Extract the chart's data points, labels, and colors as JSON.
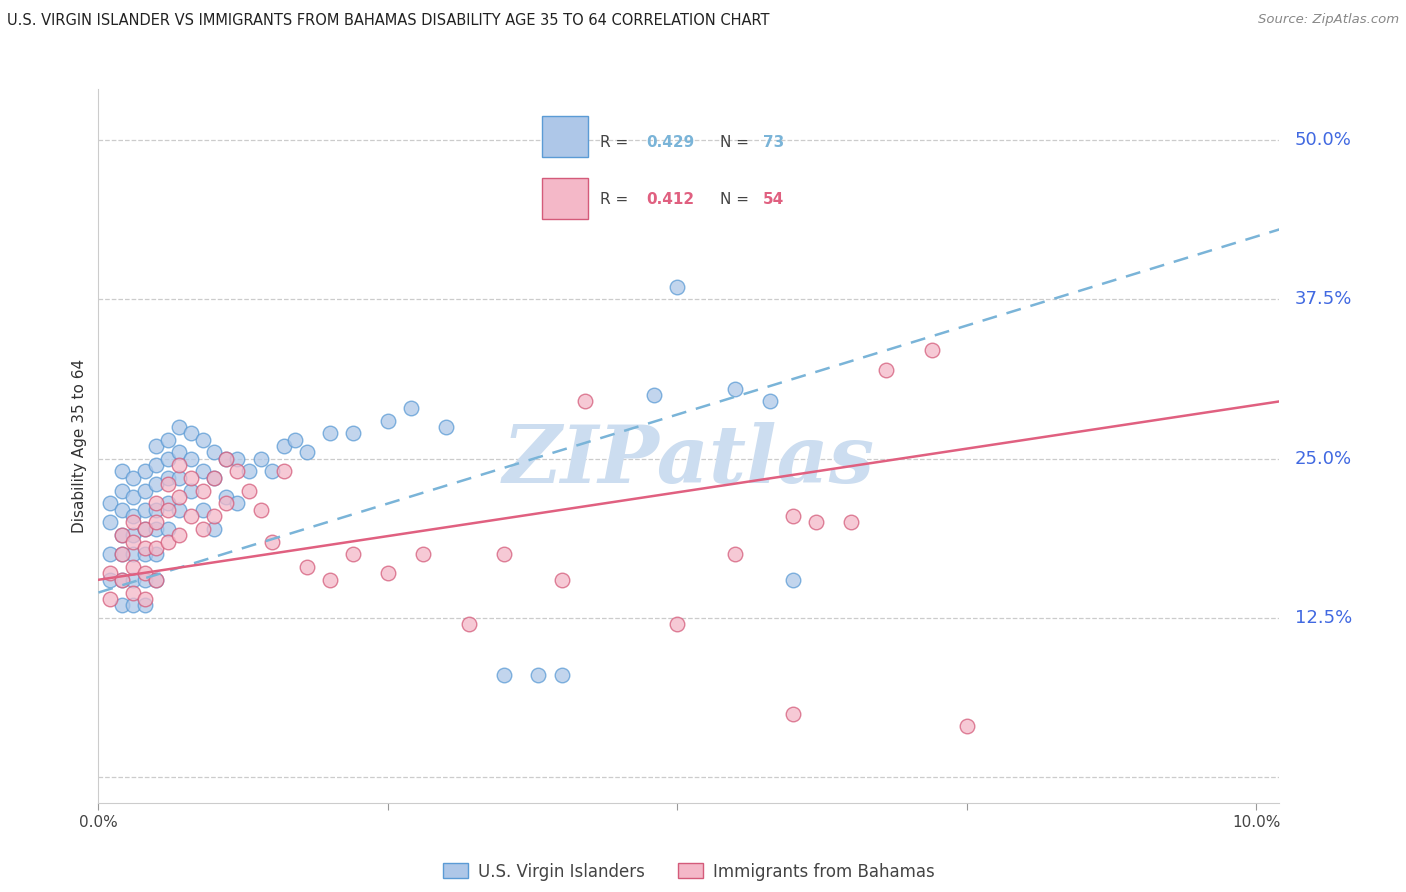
{
  "title": "U.S. VIRGIN ISLANDER VS IMMIGRANTS FROM BAHAMAS DISABILITY AGE 35 TO 64 CORRELATION CHART",
  "source": "Source: ZipAtlas.com",
  "ylabel": "Disability Age 35 to 64",
  "xlim": [
    0.0,
    0.102
  ],
  "ylim": [
    -0.02,
    0.54
  ],
  "xtick_positions": [
    0.0,
    0.025,
    0.05,
    0.075,
    0.1
  ],
  "xtick_labels": [
    "0.0%",
    "",
    "",
    "",
    "10.0%"
  ],
  "ytick_positions": [
    0.0,
    0.125,
    0.25,
    0.375,
    0.5
  ],
  "ytick_labels": [
    "",
    "12.5%",
    "25.0%",
    "37.5%",
    "50.0%"
  ],
  "r_blue": "0.429",
  "n_blue": "73",
  "r_pink": "0.412",
  "n_pink": "54",
  "blue_fill": "#aec7e8",
  "blue_edge": "#5b9bd5",
  "pink_fill": "#f4b8c8",
  "pink_edge": "#d45b7a",
  "trend_blue_color": "#7ab4d8",
  "trend_pink_color": "#e06080",
  "grid_color": "#cccccc",
  "watermark": "ZIPatlas",
  "watermark_color": "#ccddf0",
  "title_color": "#222222",
  "right_label_color": "#4169e1",
  "legend_label_blue": "U.S. Virgin Islanders",
  "legend_label_pink": "Immigrants from Bahamas",
  "blue_x": [
    0.001,
    0.001,
    0.001,
    0.001,
    0.002,
    0.002,
    0.002,
    0.002,
    0.002,
    0.002,
    0.002,
    0.003,
    0.003,
    0.003,
    0.003,
    0.003,
    0.003,
    0.003,
    0.004,
    0.004,
    0.004,
    0.004,
    0.004,
    0.004,
    0.004,
    0.005,
    0.005,
    0.005,
    0.005,
    0.005,
    0.005,
    0.005,
    0.006,
    0.006,
    0.006,
    0.006,
    0.006,
    0.007,
    0.007,
    0.007,
    0.007,
    0.008,
    0.008,
    0.008,
    0.009,
    0.009,
    0.009,
    0.01,
    0.01,
    0.01,
    0.011,
    0.011,
    0.012,
    0.012,
    0.013,
    0.014,
    0.015,
    0.016,
    0.017,
    0.018,
    0.02,
    0.022,
    0.025,
    0.027,
    0.03,
    0.035,
    0.038,
    0.04,
    0.048,
    0.05,
    0.055,
    0.058,
    0.06
  ],
  "blue_y": [
    0.215,
    0.2,
    0.175,
    0.155,
    0.24,
    0.225,
    0.21,
    0.19,
    0.175,
    0.155,
    0.135,
    0.235,
    0.22,
    0.205,
    0.19,
    0.175,
    0.155,
    0.135,
    0.24,
    0.225,
    0.21,
    0.195,
    0.175,
    0.155,
    0.135,
    0.26,
    0.245,
    0.23,
    0.21,
    0.195,
    0.175,
    0.155,
    0.265,
    0.25,
    0.235,
    0.215,
    0.195,
    0.275,
    0.255,
    0.235,
    0.21,
    0.27,
    0.25,
    0.225,
    0.265,
    0.24,
    0.21,
    0.255,
    0.235,
    0.195,
    0.25,
    0.22,
    0.25,
    0.215,
    0.24,
    0.25,
    0.24,
    0.26,
    0.265,
    0.255,
    0.27,
    0.27,
    0.28,
    0.29,
    0.275,
    0.08,
    0.08,
    0.08,
    0.3,
    0.385,
    0.305,
    0.295,
    0.155
  ],
  "pink_x": [
    0.001,
    0.001,
    0.002,
    0.002,
    0.002,
    0.003,
    0.003,
    0.003,
    0.003,
    0.004,
    0.004,
    0.004,
    0.004,
    0.005,
    0.005,
    0.005,
    0.005,
    0.006,
    0.006,
    0.006,
    0.007,
    0.007,
    0.007,
    0.008,
    0.008,
    0.009,
    0.009,
    0.01,
    0.01,
    0.011,
    0.011,
    0.012,
    0.013,
    0.014,
    0.015,
    0.016,
    0.018,
    0.02,
    0.022,
    0.025,
    0.028,
    0.032,
    0.035,
    0.04,
    0.042,
    0.05,
    0.055,
    0.06,
    0.062,
    0.065,
    0.068,
    0.072,
    0.075,
    0.06
  ],
  "pink_y": [
    0.16,
    0.14,
    0.19,
    0.175,
    0.155,
    0.2,
    0.185,
    0.165,
    0.145,
    0.195,
    0.18,
    0.16,
    0.14,
    0.215,
    0.2,
    0.18,
    0.155,
    0.23,
    0.21,
    0.185,
    0.245,
    0.22,
    0.19,
    0.235,
    0.205,
    0.225,
    0.195,
    0.235,
    0.205,
    0.25,
    0.215,
    0.24,
    0.225,
    0.21,
    0.185,
    0.24,
    0.165,
    0.155,
    0.175,
    0.16,
    0.175,
    0.12,
    0.175,
    0.155,
    0.295,
    0.12,
    0.175,
    0.205,
    0.2,
    0.2,
    0.32,
    0.335,
    0.04,
    0.05
  ]
}
